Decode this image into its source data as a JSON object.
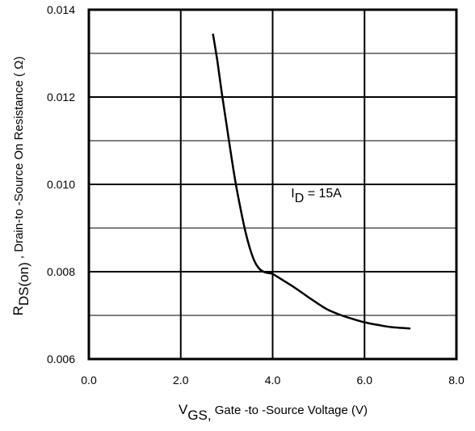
{
  "chart_data": {
    "type": "line",
    "xlim": [
      0.0,
      8.0
    ],
    "ylim": [
      0.006,
      0.014
    ],
    "x_ticks": [
      "0.0",
      "2.0",
      "4.0",
      "6.0",
      "8.0"
    ],
    "y_ticks": [
      "0.006",
      "0.008",
      "0.010",
      "0.012",
      "0.014"
    ],
    "grid": true,
    "xlabel": {
      "main": "V",
      "sub": "GS,",
      "rest": " Gate -to -Source Voltage  (V)"
    },
    "ylabel": {
      "main": "R",
      "sub": "DS(on)",
      "rest": " ,   Drain-to -Source On Resistance ( Ω)"
    },
    "annotation": {
      "main": "I",
      "sub": "D",
      "rest": " = 15A",
      "x": 4.4,
      "y": 0.0097
    },
    "series": [
      {
        "x": [
          2.7,
          2.8,
          2.9,
          3.0,
          3.1,
          3.2,
          3.3,
          3.4,
          3.5,
          3.6,
          3.7,
          3.8,
          3.9,
          4.0,
          4.2,
          4.5,
          4.8,
          5.0,
          5.2,
          5.5,
          5.8,
          6.0,
          6.3,
          6.6,
          7.0
        ],
        "y": [
          0.01345,
          0.0128,
          0.01205,
          0.01135,
          0.01065,
          0.01,
          0.00945,
          0.00895,
          0.00855,
          0.00825,
          0.00808,
          0.008,
          0.00797,
          0.00795,
          0.00782,
          0.00762,
          0.0074,
          0.00726,
          0.00713,
          0.007,
          0.0069,
          0.00684,
          0.00678,
          0.00673,
          0.0067
        ]
      }
    ]
  }
}
